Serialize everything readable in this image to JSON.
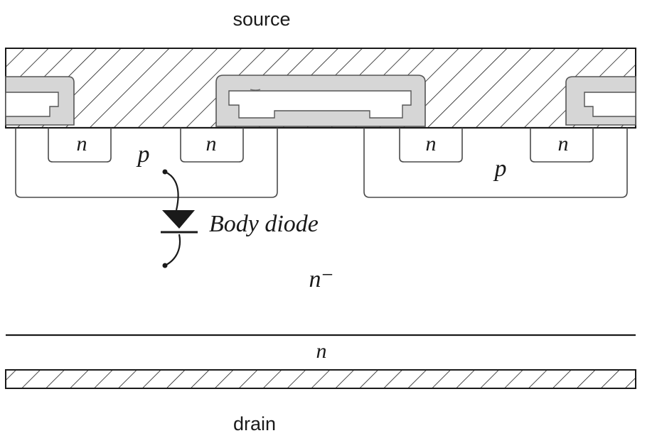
{
  "diagram": {
    "terminals": {
      "top": "source",
      "bottom": "drain"
    },
    "regions": {
      "n_plus_left_1": "n",
      "n_plus_left_2": "n",
      "n_plus_right_1": "n",
      "n_plus_right_2": "n",
      "p_well_left": "p",
      "p_well_right": "p",
      "drift": "n⁻",
      "substrate": "n"
    },
    "body_diode_label": "Body diode",
    "colors": {
      "line": "#1a1a1a",
      "oxide": "#d6d6d6",
      "background": "#ffffff"
    }
  }
}
